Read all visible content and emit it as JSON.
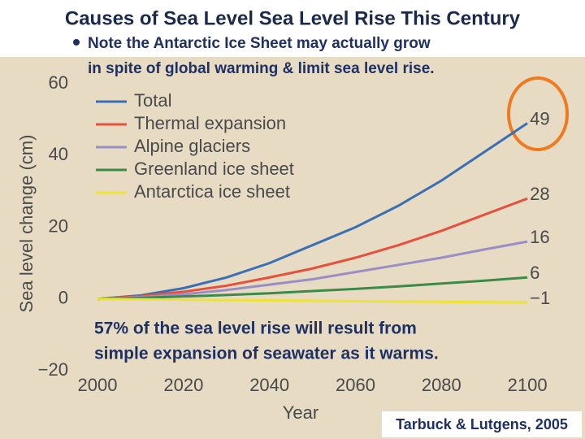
{
  "title": "Causes of Sea Level Sea Level Rise This Century",
  "bullet_lines": [
    "Note the Antarctic Ice Sheet may actually grow",
    "in spite of global warming & limit sea level rise."
  ],
  "annotation_lines": [
    "57% of the sea level rise will result from",
    "simple expansion of seawater as it warms."
  ],
  "credit": "Tarbuck & Lutgens, 2005",
  "chart_data": {
    "type": "line",
    "x_label": "Year",
    "y_label": "Sea level change (cm)",
    "x": [
      2000,
      2010,
      2020,
      2030,
      2040,
      2050,
      2060,
      2070,
      2080,
      2090,
      2100
    ],
    "xlim": [
      1993,
      2103
    ],
    "xticks": [
      2000,
      2020,
      2040,
      2060,
      2080,
      2100
    ],
    "ylim": [
      -20,
      60
    ],
    "yticks": [
      {
        "value": -20,
        "label": "−20"
      },
      0,
      20,
      40,
      60
    ],
    "legend": "upper left",
    "series": [
      {
        "name": "Total",
        "color": "#3a6fb4",
        "values": [
          0,
          1,
          3,
          6,
          10,
          15,
          20,
          26,
          33,
          41,
          49
        ],
        "value_labels": [
          null,
          null,
          null,
          null,
          null,
          null,
          null,
          null,
          null,
          null,
          "49"
        ]
      },
      {
        "name": "Thermal expansion",
        "color": "#e6503c",
        "values": [
          0,
          0.8,
          2,
          3.7,
          6,
          8.5,
          11.5,
          15,
          19,
          23.5,
          28
        ],
        "value_labels": [
          null,
          null,
          null,
          null,
          null,
          null,
          null,
          null,
          null,
          null,
          "28"
        ]
      },
      {
        "name": "Alpine glaciers",
        "color": "#9a8ec6",
        "values": [
          0,
          0.5,
          1.3,
          2.5,
          4,
          5.5,
          7.5,
          9.5,
          11.5,
          13.8,
          16
        ],
        "value_labels": [
          null,
          null,
          null,
          null,
          null,
          null,
          null,
          null,
          null,
          null,
          "16"
        ]
      },
      {
        "name": "Greenland ice sheet",
        "color": "#3b8a48",
        "values": [
          0,
          0.3,
          0.7,
          1.1,
          1.6,
          2.2,
          2.8,
          3.5,
          4.3,
          5.1,
          6
        ],
        "value_labels": [
          null,
          null,
          null,
          null,
          null,
          null,
          null,
          null,
          null,
          null,
          "6"
        ]
      },
      {
        "name": "Antarctica ice sheet",
        "color": "#ece238",
        "values": [
          0,
          -0.1,
          -0.2,
          -0.3,
          -0.4,
          -0.5,
          -0.6,
          -0.7,
          -0.8,
          -0.9,
          -1
        ],
        "value_labels": [
          null,
          null,
          null,
          null,
          null,
          null,
          null,
          null,
          null,
          null,
          "−1"
        ]
      }
    ]
  }
}
